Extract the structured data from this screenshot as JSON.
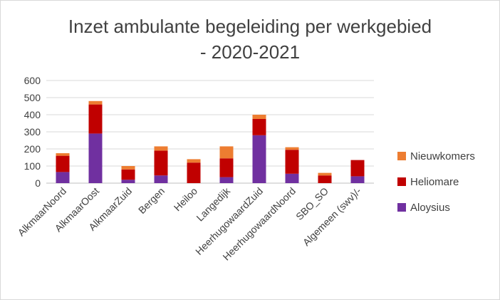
{
  "chart_data": {
    "type": "bar",
    "stacked": true,
    "title_lines": [
      "Inzet ambulante begeleiding per werkgebied",
      "- 2020-2021"
    ],
    "categories": [
      "AlkmaarNoord",
      "AlkmaarOost",
      "AlkmaarZuid",
      "Bergen",
      "Heiloo",
      "Langedijk",
      "HeerhugowaardZuid",
      "HeerhugowaardNoord",
      "SBO_SO",
      "Algemeen (swv)/-"
    ],
    "series": [
      {
        "name": "Aloysius",
        "color": "#7030a0",
        "values": [
          65,
          290,
          20,
          45,
          0,
          35,
          280,
          55,
          0,
          40
        ]
      },
      {
        "name": "Heliomare",
        "color": "#c00000",
        "values": [
          95,
          170,
          60,
          145,
          120,
          110,
          95,
          140,
          45,
          95
        ]
      },
      {
        "name": "Nieuwkomers",
        "color": "#ed7d31",
        "values": [
          15,
          20,
          20,
          25,
          20,
          70,
          25,
          15,
          15,
          0
        ]
      }
    ],
    "y_ticks": [
      "0",
      "100",
      "200",
      "300",
      "400",
      "500",
      "600"
    ],
    "ylim": [
      0,
      600
    ],
    "grid": true,
    "legend": {
      "position": "right",
      "order": [
        "Nieuwkomers",
        "Heliomare",
        "Aloysius"
      ]
    }
  }
}
